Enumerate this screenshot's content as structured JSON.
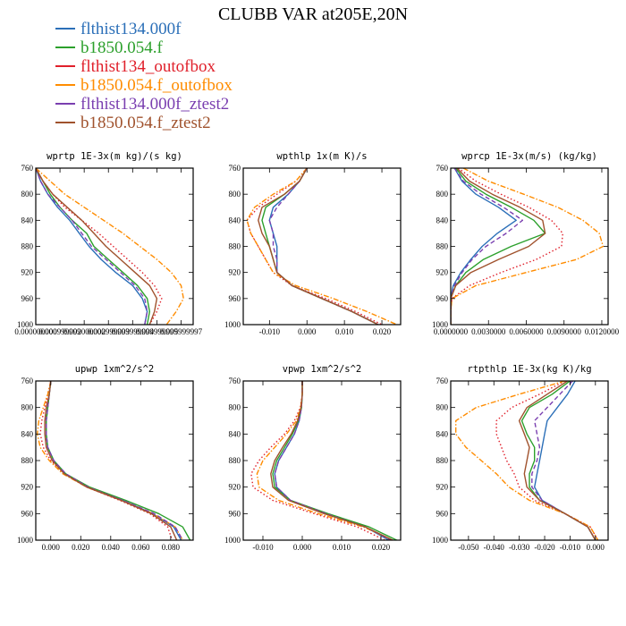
{
  "figure": {
    "title": "CLUBB VAR at205E,20N"
  },
  "legend": [
    {
      "label": "flthist134.000f",
      "color": "#2b6fb8",
      "dash": "solid"
    },
    {
      "label": "b1850.054.f",
      "color": "#2ca02c",
      "dash": "solid"
    },
    {
      "label": "flthist134_outofbox",
      "color": "#e0202b",
      "dash": "dot"
    },
    {
      "label": "b1850.054.f_outofbox",
      "color": "#ff8c00",
      "dash": "dashdot"
    },
    {
      "label": "flthist134.000f_ztest2",
      "color": "#7a3fb0",
      "dash": "dash"
    },
    {
      "label": "b1850.054.f_ztest2",
      "color": "#a0522d",
      "dash": "solid"
    }
  ],
  "chart_data": [
    {
      "type": "line",
      "title": "wprtp  1E-3x(m kg)/(s kg)",
      "xlim": [
        0.0,
        0.0065
      ],
      "ylim": [
        760,
        1000
      ],
      "xticks": [
        0,
        0.001,
        0.002,
        0.003,
        0.004,
        0.005,
        0.006
      ],
      "xtick_labels": [
        "0.000000000",
        "0.000999999",
        "0.002000000",
        "0.002999999",
        "0.003999999",
        "0.004999999",
        "0.005999997"
      ],
      "yticks": [
        760,
        800,
        840,
        880,
        920,
        960,
        1000
      ],
      "y": [
        760,
        780,
        800,
        820,
        840,
        860,
        880,
        900,
        920,
        940,
        960,
        980,
        1000
      ],
      "series": [
        {
          "name": "flthist134.000f",
          "x": [
            0.0,
            0.0002,
            0.0005,
            0.0009,
            0.0014,
            0.0018,
            0.0022,
            0.0027,
            0.0033,
            0.004,
            0.0044,
            0.0046,
            0.0045
          ]
        },
        {
          "name": "b1850.054.f",
          "x": [
            0.0,
            0.0003,
            0.0006,
            0.001,
            0.0015,
            0.0021,
            0.0024,
            0.003,
            0.0036,
            0.0042,
            0.0046,
            0.0047,
            0.0046
          ]
        },
        {
          "name": "flthist134_outofbox",
          "x": [
            0.0,
            0.0003,
            0.0007,
            0.0012,
            0.0019,
            0.0026,
            0.0032,
            0.0038,
            0.0044,
            0.0049,
            0.0052,
            0.005,
            0.0047
          ]
        },
        {
          "name": "b1850.054.f_outofbox",
          "x": [
            0.0,
            0.0006,
            0.0012,
            0.002,
            0.0028,
            0.0036,
            0.0043,
            0.005,
            0.0056,
            0.006,
            0.0061,
            0.0058,
            0.0054
          ]
        },
        {
          "name": "flthist134.000f_ztest2",
          "x": [
            0.0,
            0.0002,
            0.0005,
            0.001,
            0.0015,
            0.0019,
            0.0023,
            0.0029,
            0.0035,
            0.0041,
            0.0045,
            0.0046,
            0.0045
          ]
        },
        {
          "name": "b1850.054.f_ztest2",
          "x": [
            0.0,
            0.0003,
            0.0007,
            0.0013,
            0.0019,
            0.0024,
            0.0029,
            0.0035,
            0.0041,
            0.0047,
            0.005,
            0.0049,
            0.0047
          ]
        }
      ]
    },
    {
      "type": "line",
      "title": "wpthlp  1x(m K)/s",
      "xlim": [
        -0.017,
        0.025
      ],
      "ylim": [
        760,
        1000
      ],
      "xticks": [
        -0.01,
        0.0,
        0.01,
        0.02
      ],
      "xtick_labels": [
        "-0.010",
        "0.000",
        "0.010",
        "0.020"
      ],
      "yticks": [
        760,
        800,
        840,
        880,
        920,
        960,
        1000
      ],
      "y": [
        760,
        780,
        800,
        820,
        840,
        860,
        880,
        900,
        920,
        940,
        960,
        980,
        1000
      ],
      "series": [
        {
          "name": "flthist134.000f",
          "x": [
            0.0,
            -0.002,
            -0.005,
            -0.009,
            -0.01,
            -0.009,
            -0.008,
            -0.008,
            -0.008,
            -0.004,
            0.004,
            0.012,
            0.019
          ]
        },
        {
          "name": "b1850.054.f",
          "x": [
            0.0,
            -0.002,
            -0.006,
            -0.011,
            -0.012,
            -0.011,
            -0.01,
            -0.009,
            -0.008,
            -0.004,
            0.004,
            0.012,
            0.019
          ]
        },
        {
          "name": "flthist134_outofbox",
          "x": [
            0.0,
            -0.003,
            -0.008,
            -0.013,
            -0.016,
            -0.015,
            -0.013,
            -0.011,
            -0.009,
            -0.004,
            0.005,
            0.013,
            0.02
          ]
        },
        {
          "name": "b1850.054.f_outofbox",
          "x": [
            0.0,
            -0.003,
            -0.009,
            -0.014,
            -0.016,
            -0.015,
            -0.013,
            -0.011,
            -0.009,
            -0.003,
            0.007,
            0.016,
            0.024
          ]
        },
        {
          "name": "flthist134.000f_ztest2",
          "x": [
            0.0,
            -0.002,
            -0.005,
            -0.008,
            -0.01,
            -0.009,
            -0.009,
            -0.008,
            -0.008,
            -0.004,
            0.004,
            0.012,
            0.019
          ]
        },
        {
          "name": "b1850.054.f_ztest2",
          "x": [
            0.0,
            -0.002,
            -0.006,
            -0.012,
            -0.013,
            -0.012,
            -0.01,
            -0.009,
            -0.008,
            -0.004,
            0.004,
            0.012,
            0.019
          ]
        }
      ]
    },
    {
      "type": "line",
      "title": "wprcp  1E-3x(m/s) (kg/kg)",
      "xlim": [
        0.0,
        0.0125
      ],
      "ylim": [
        760,
        1000
      ],
      "xticks": [
        0,
        0.003,
        0.006,
        0.009,
        0.012
      ],
      "xtick_labels": [
        "0.0000000",
        "0.0030000",
        "0.0060000",
        "0.0090000",
        "0.0120000"
      ],
      "yticks": [
        760,
        800,
        840,
        880,
        920,
        960,
        1000
      ],
      "y": [
        760,
        780,
        800,
        820,
        840,
        860,
        880,
        900,
        920,
        940,
        960,
        980,
        1000
      ],
      "series": [
        {
          "name": "flthist134.000f",
          "x": [
            0.0003,
            0.0009,
            0.002,
            0.0038,
            0.0052,
            0.0037,
            0.0025,
            0.0016,
            0.0008,
            0.0002,
            0.0,
            0.0,
            0.0
          ]
        },
        {
          "name": "b1850.054.f",
          "x": [
            0.0004,
            0.0012,
            0.0028,
            0.0048,
            0.0066,
            0.0075,
            0.0048,
            0.0026,
            0.0012,
            0.0004,
            0.0,
            0.0,
            0.0
          ]
        },
        {
          "name": "flthist134_outofbox",
          "x": [
            0.0006,
            0.002,
            0.004,
            0.0062,
            0.008,
            0.0089,
            0.0088,
            0.0068,
            0.004,
            0.0015,
            0.0001,
            0.0,
            0.0
          ]
        },
        {
          "name": "b1850.054.f_outofbox",
          "x": [
            0.001,
            0.003,
            0.0058,
            0.0085,
            0.0105,
            0.0118,
            0.0121,
            0.01,
            0.006,
            0.002,
            0.0001,
            0.0,
            0.0
          ]
        },
        {
          "name": "flthist134.000f_ztest2",
          "x": [
            0.0003,
            0.001,
            0.0024,
            0.0042,
            0.0057,
            0.0044,
            0.0028,
            0.0017,
            0.0009,
            0.0003,
            0.0,
            0.0,
            0.0
          ]
        },
        {
          "name": "b1850.054.f_ztest2",
          "x": [
            0.0005,
            0.0015,
            0.0033,
            0.0055,
            0.0073,
            0.0075,
            0.0062,
            0.0038,
            0.0016,
            0.0004,
            0.0,
            0.0,
            0.0
          ]
        }
      ]
    },
    {
      "type": "line",
      "title": "upwp   1xm^2/s^2",
      "xlim": [
        -0.01,
        0.095
      ],
      "ylim": [
        760,
        1000
      ],
      "xticks": [
        0.0,
        0.02,
        0.04,
        0.06,
        0.08
      ],
      "xtick_labels": [
        "0.000",
        "0.020",
        "0.040",
        "0.060",
        "0.080"
      ],
      "yticks": [
        760,
        800,
        840,
        880,
        920,
        960,
        1000
      ],
      "y": [
        760,
        780,
        800,
        820,
        840,
        860,
        880,
        900,
        920,
        940,
        960,
        980,
        1000
      ],
      "series": [
        {
          "name": "flthist134.000f",
          "x": [
            0.0,
            -0.001,
            -0.002,
            -0.003,
            -0.003,
            -0.002,
            0.002,
            0.01,
            0.025,
            0.048,
            0.068,
            0.082,
            0.087
          ]
        },
        {
          "name": "b1850.054.f",
          "x": [
            0.0,
            -0.001,
            -0.002,
            -0.003,
            -0.003,
            -0.002,
            0.002,
            0.01,
            0.026,
            0.05,
            0.072,
            0.088,
            0.093
          ]
        },
        {
          "name": "flthist134_outofbox",
          "x": [
            0.0,
            -0.002,
            -0.004,
            -0.006,
            -0.007,
            -0.005,
            0.0,
            0.009,
            0.024,
            0.046,
            0.066,
            0.078,
            0.081
          ]
        },
        {
          "name": "b1850.054.f_outofbox",
          "x": [
            0.0,
            -0.002,
            -0.005,
            -0.008,
            -0.009,
            -0.007,
            -0.001,
            0.008,
            0.024,
            0.047,
            0.068,
            0.083,
            0.088
          ]
        },
        {
          "name": "flthist134.000f_ztest2",
          "x": [
            0.0,
            -0.001,
            -0.002,
            -0.003,
            -0.003,
            -0.002,
            0.002,
            0.01,
            0.025,
            0.048,
            0.069,
            0.083,
            0.088
          ]
        },
        {
          "name": "b1850.054.f_ztest2",
          "x": [
            0.0,
            -0.001,
            -0.003,
            -0.004,
            -0.004,
            -0.003,
            0.001,
            0.009,
            0.024,
            0.047,
            0.067,
            0.08,
            0.084
          ]
        }
      ]
    },
    {
      "type": "line",
      "title": "vpwp   1xm^2/s^2",
      "xlim": [
        -0.015,
        0.025
      ],
      "ylim": [
        760,
        1000
      ],
      "xticks": [
        -0.01,
        0.0,
        0.01,
        0.02
      ],
      "xtick_labels": [
        "-0.010",
        "0.000",
        "0.010",
        "0.020"
      ],
      "yticks": [
        760,
        800,
        840,
        880,
        920,
        960,
        1000
      ],
      "y": [
        760,
        780,
        800,
        820,
        840,
        860,
        880,
        900,
        920,
        940,
        960,
        980,
        1000
      ],
      "series": [
        {
          "name": "flthist134.000f",
          "x": [
            0.0,
            0.0,
            -0.0002,
            -0.0008,
            -0.002,
            -0.004,
            -0.006,
            -0.007,
            -0.0065,
            -0.003,
            0.006,
            0.016,
            0.022
          ]
        },
        {
          "name": "b1850.054.f",
          "x": [
            0.0,
            0.0,
            -0.0002,
            -0.001,
            -0.0025,
            -0.0045,
            -0.0065,
            -0.0075,
            -0.007,
            -0.003,
            0.0065,
            0.017,
            0.024
          ]
        },
        {
          "name": "flthist134_outofbox",
          "x": [
            0.0,
            0.0,
            -0.0005,
            -0.002,
            -0.0045,
            -0.008,
            -0.011,
            -0.013,
            -0.0125,
            -0.0075,
            0.003,
            0.014,
            0.021
          ]
        },
        {
          "name": "b1850.054.f_outofbox",
          "x": [
            0.0,
            0.0,
            -0.0004,
            -0.0015,
            -0.004,
            -0.007,
            -0.01,
            -0.0115,
            -0.011,
            -0.006,
            0.004,
            0.0155,
            0.023
          ]
        },
        {
          "name": "flthist134.000f_ztest2",
          "x": [
            0.0,
            0.0,
            -0.0002,
            -0.0008,
            -0.002,
            -0.004,
            -0.006,
            -0.007,
            -0.0065,
            -0.003,
            0.006,
            0.016,
            0.0225
          ]
        },
        {
          "name": "b1850.054.f_ztest2",
          "x": [
            0.0,
            0.0,
            -0.0003,
            -0.0012,
            -0.0028,
            -0.005,
            -0.007,
            -0.008,
            -0.0075,
            -0.0035,
            0.0055,
            0.016,
            0.023
          ]
        }
      ]
    },
    {
      "type": "line",
      "title": "rtpthlp  1E-3x(kg K)/kg",
      "xlim": [
        -0.057,
        0.005
      ],
      "ylim": [
        760,
        1000
      ],
      "xticks": [
        -0.05,
        -0.04,
        -0.03,
        -0.02,
        -0.01,
        0.0
      ],
      "xtick_labels": [
        "-0.050",
        "-0.040",
        "-0.030",
        "-0.020",
        "-0.010",
        "0.000"
      ],
      "yticks": [
        760,
        800,
        840,
        880,
        920,
        960,
        1000
      ],
      "y": [
        760,
        780,
        800,
        820,
        840,
        860,
        880,
        900,
        920,
        940,
        960,
        980,
        1000
      ],
      "series": [
        {
          "name": "flthist134.000f",
          "x": [
            -0.008,
            -0.011,
            -0.015,
            -0.019,
            -0.02,
            -0.021,
            -0.022,
            -0.023,
            -0.024,
            -0.021,
            -0.012,
            -0.003,
            0.0
          ]
        },
        {
          "name": "b1850.054.f",
          "x": [
            -0.01,
            -0.017,
            -0.026,
            -0.029,
            -0.027,
            -0.024,
            -0.024,
            -0.026,
            -0.026,
            -0.022,
            -0.012,
            -0.003,
            0.0
          ]
        },
        {
          "name": "flthist134_outofbox",
          "x": [
            -0.012,
            -0.022,
            -0.033,
            -0.039,
            -0.039,
            -0.037,
            -0.035,
            -0.032,
            -0.03,
            -0.024,
            -0.012,
            -0.002,
            0.001
          ]
        },
        {
          "name": "b1850.054.f_outofbox",
          "x": [
            -0.012,
            -0.03,
            -0.047,
            -0.055,
            -0.055,
            -0.051,
            -0.045,
            -0.039,
            -0.034,
            -0.026,
            -0.012,
            -0.002,
            0.001
          ]
        },
        {
          "name": "flthist134.000f_ztest2",
          "x": [
            -0.009,
            -0.014,
            -0.019,
            -0.024,
            -0.023,
            -0.022,
            -0.023,
            -0.025,
            -0.025,
            -0.021,
            -0.012,
            -0.003,
            0.0
          ]
        },
        {
          "name": "b1850.054.f_ztest2",
          "x": [
            -0.011,
            -0.019,
            -0.027,
            -0.03,
            -0.028,
            -0.026,
            -0.027,
            -0.028,
            -0.027,
            -0.022,
            -0.012,
            -0.003,
            0.0
          ]
        }
      ]
    }
  ]
}
